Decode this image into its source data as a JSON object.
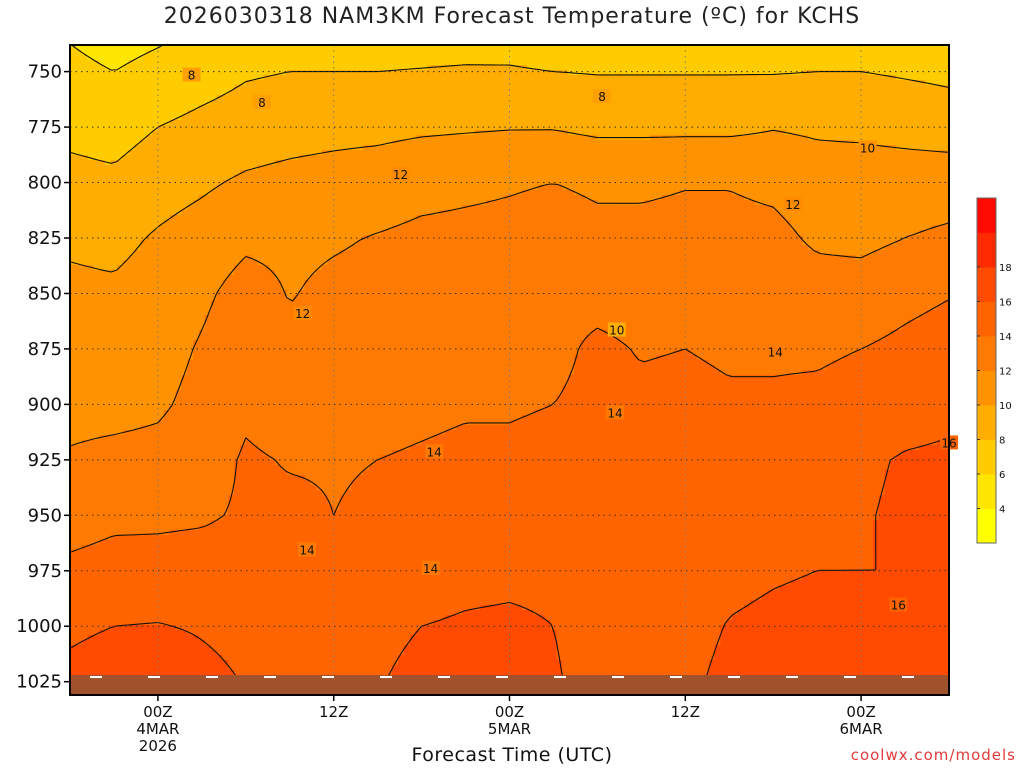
{
  "chart_data": {
    "type": "heatmap",
    "title": "2026030318 NAM3KM Forecast Temperature (ºC) for KCHS",
    "xlabel": "Forecast Time (UTC)",
    "ylabel": "",
    "y_ticks": [
      "750",
      "775",
      "800",
      "825",
      "850",
      "875",
      "900",
      "925",
      "950",
      "975",
      "1000",
      "1025"
    ],
    "x_ticks": [
      {
        "label": "00Z",
        "sub": [
          "4MAR",
          "2026"
        ],
        "hour": 6
      },
      {
        "label": "12Z",
        "sub": [],
        "hour": 18
      },
      {
        "label": "00Z",
        "sub": [
          "5MAR"
        ],
        "hour": 30
      },
      {
        "label": "12Z",
        "sub": [],
        "hour": 42
      },
      {
        "label": "00Z",
        "sub": [
          "6MAR"
        ],
        "hour": 54
      }
    ],
    "x_range_hours": [
      0,
      60
    ],
    "y_range_hPa": [
      738,
      1031
    ],
    "surface_level_hPa": 1022,
    "grid": true,
    "contour_interval": 2,
    "contour_labels": [
      "8",
      "8",
      "8",
      "10",
      "10",
      "12",
      "12",
      "12",
      "14",
      "14",
      "14",
      "14",
      "14",
      "16",
      "16"
    ],
    "colorbar": {
      "levels": [
        "4",
        "6",
        "8",
        "10",
        "12",
        "14",
        "16",
        "18"
      ],
      "colors": [
        "#ffff00",
        "#ffe600",
        "#ffcc00",
        "#ffad00",
        "#ff9200",
        "#ff7a00",
        "#ff6400",
        "#ff4a00",
        "#ff2a00",
        "#ff0a00"
      ]
    },
    "profiles": [
      {
        "hour": 0,
        "t": [
          6.5,
          7.5,
          8.6,
          9.7,
          10.4,
          10.8,
          11.4,
          12.2,
          13.2,
          14.4,
          15.6,
          16.6
        ]
      },
      {
        "hour": 3,
        "t": [
          6.0,
          7.2,
          8.4,
          9.5,
          10.3,
          10.7,
          11.4,
          12.5,
          13.6,
          14.7,
          16.0,
          17.2
        ]
      },
      {
        "hour": 6,
        "t": [
          6.6,
          8.0,
          9.2,
          10.2,
          10.8,
          11.2,
          11.7,
          12.6,
          13.7,
          14.6,
          16.1,
          17.6
        ]
      },
      {
        "hour": 9,
        "t": [
          7.2,
          8.5,
          9.7,
          10.8,
          11.6,
          12.2,
          12.6,
          13.2,
          13.8,
          14.7,
          15.8,
          16.6
        ]
      },
      {
        "hour": 12,
        "t": [
          7.8,
          8.9,
          10.3,
          11.6,
          12.8,
          13.4,
          13.7,
          14.2,
          14.2,
          14.6,
          15.4,
          15.9
        ]
      },
      {
        "hour": 15,
        "t": [
          8.0,
          9.2,
          10.6,
          11.6,
          11.9,
          12.4,
          13.2,
          13.9,
          14.3,
          14.7,
          15.4,
          15.6
        ]
      },
      {
        "hour": 18,
        "t": [
          8.0,
          9.4,
          10.8,
          11.8,
          12.4,
          12.7,
          13.4,
          13.9,
          14.0,
          14.3,
          14.8,
          15.2
        ]
      },
      {
        "hour": 21,
        "t": [
          8.0,
          9.5,
          11.0,
          12.1,
          12.6,
          12.9,
          13.4,
          14.0,
          14.2,
          14.6,
          15.2,
          15.8
        ]
      },
      {
        "hour": 24,
        "t": [
          8.1,
          9.7,
          11.4,
          12.4,
          12.9,
          13.2,
          13.6,
          14.2,
          14.6,
          15.2,
          16.0,
          16.9
        ]
      },
      {
        "hour": 27,
        "t": [
          8.2,
          9.8,
          11.6,
          12.5,
          13.0,
          13.4,
          13.8,
          14.4,
          14.8,
          15.5,
          16.2,
          17.2
        ]
      },
      {
        "hour": 30,
        "t": [
          8.2,
          9.9,
          11.8,
          12.6,
          13.0,
          13.4,
          13.8,
          14.4,
          14.9,
          15.6,
          16.3,
          17.0
        ]
      },
      {
        "hour": 33,
        "t": [
          8.0,
          9.9,
          12.0,
          12.9,
          13.6,
          13.6,
          14.0,
          14.6,
          15.0,
          15.6,
          16.0,
          16.2
        ]
      },
      {
        "hour": 36,
        "t": [
          7.9,
          9.6,
          11.7,
          12.5,
          13.5,
          14.3,
          14.4,
          14.5,
          14.7,
          15.0,
          15.2,
          15.3
        ]
      },
      {
        "hour": 39,
        "t": [
          7.9,
          9.6,
          11.7,
          12.5,
          13.4,
          13.9,
          14.3,
          14.4,
          14.6,
          15.0,
          15.2,
          15.3
        ]
      },
      {
        "hour": 42,
        "t": [
          7.9,
          9.6,
          11.9,
          12.6,
          13.5,
          14.0,
          14.4,
          14.4,
          14.6,
          15.0,
          15.3,
          15.6
        ]
      },
      {
        "hour": 45,
        "t": [
          7.9,
          9.6,
          11.9,
          12.6,
          13.4,
          13.8,
          14.2,
          14.6,
          15.0,
          15.5,
          16.1,
          16.5
        ]
      },
      {
        "hour": 48,
        "t": [
          7.9,
          9.9,
          11.6,
          12.5,
          13.1,
          13.6,
          14.4,
          15.2,
          15.4,
          15.8,
          16.4,
          17.2
        ]
      },
      {
        "hour": 51,
        "t": [
          8.0,
          9.7,
          11.0,
          11.7,
          12.8,
          13.6,
          14.6,
          15.6,
          15.8,
          16.0,
          16.6,
          17.3
        ]
      },
      {
        "hour": 54,
        "t": [
          8.0,
          9.6,
          11.0,
          11.5,
          12.9,
          14.0,
          15.1,
          15.8,
          15.9,
          16.0,
          16.4,
          16.9
        ]
      },
      {
        "hour": 57,
        "t": [
          7.8,
          9.3,
          11.1,
          12.0,
          13.5,
          14.4,
          15.5,
          16.1,
          16.2,
          16.0,
          16.4,
          16.8
        ]
      },
      {
        "hour": 60,
        "t": [
          7.6,
          9.0,
          11.2,
          12.3,
          13.9,
          14.8,
          15.7,
          16.2,
          16.2,
          16.1,
          16.7,
          17.0
        ]
      }
    ]
  },
  "credit": "coolwx.com/models"
}
